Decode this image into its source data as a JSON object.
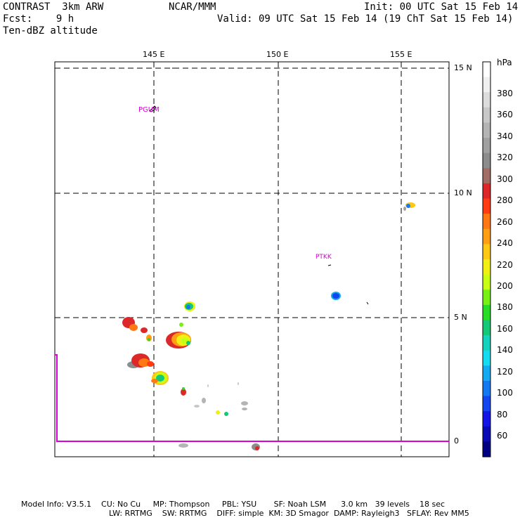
{
  "header": {
    "model": "CONTRAST  3km ARW",
    "forecast": "Fcst:    9 h",
    "field": "Ten-dBZ altitude",
    "org": "NCAR/MMM",
    "init": "Init: 00 UTC Sat 15 Feb 14",
    "valid": "Valid: 09 UTC Sat 15 Feb 14 (19 ChT Sat 15 Feb 14)"
  },
  "map": {
    "lon_labels": [
      "145 E",
      "150 E",
      "155 E"
    ],
    "lat_labels": [
      "15 N",
      "10 N",
      "5 N",
      "0"
    ],
    "stations": [
      "PGUM",
      "PTKK"
    ]
  },
  "colorbar": {
    "unit": "hPa",
    "ticks": [
      "380",
      "360",
      "340",
      "320",
      "300",
      "280",
      "260",
      "240",
      "220",
      "200",
      "180",
      "160",
      "140",
      "120",
      "100",
      "80",
      "60"
    ],
    "colors": [
      "#ffffff",
      "#f0f0f0",
      "#dcdcdc",
      "#c8c8c8",
      "#b4b4b4",
      "#a0a0a0",
      "#8c8c8c",
      "#a06e64",
      "#dc2828",
      "#ff3c14",
      "#ff7814",
      "#ffa014",
      "#ffc814",
      "#f0f014",
      "#c8ff14",
      "#78f014",
      "#28dc28",
      "#14c878",
      "#14d2be",
      "#14dcf0",
      "#14aaf0",
      "#1478f0",
      "#1446f0",
      "#1414e6",
      "#0a0ab4",
      "#000080"
    ]
  },
  "footer": {
    "line1": "Model Info: V3.5.1    CU: No Cu     MP: Thompson     PBL: YSU       SF: Noah LSM      3.0 km   39 levels    18 sec",
    "line2": "LW: RRTMG    SW: RRTMG    DIFF: simple  KM: 3D Smagor  DAMP: Rayleigh3   SFLAY: Rev MM5"
  }
}
